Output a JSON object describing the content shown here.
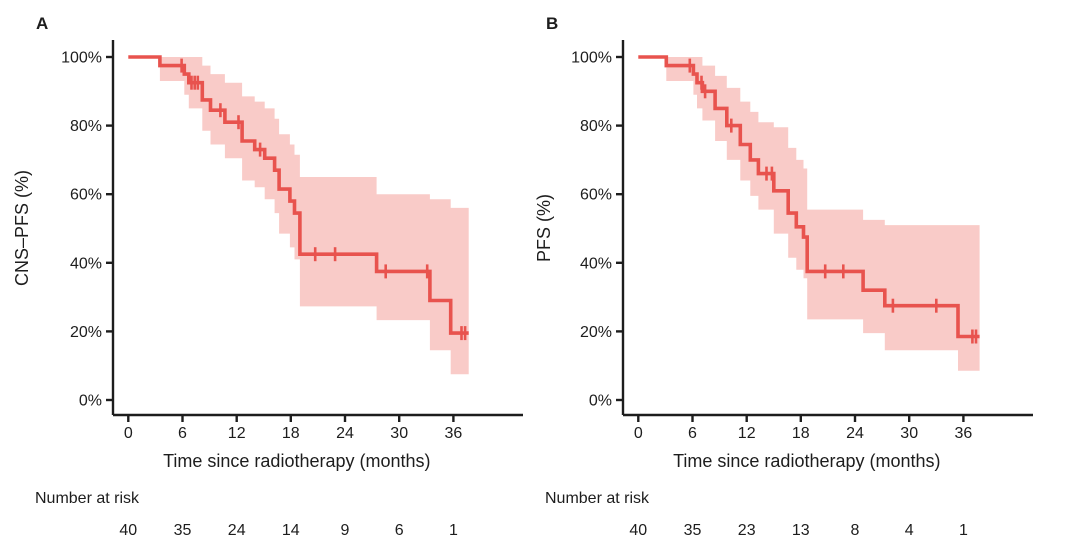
{
  "figure": {
    "background": "#ffffff",
    "colors": {
      "line": "#e8534e",
      "band": "#f9cbc8",
      "text": "#1d1d1d",
      "axis": "#1d1d1d"
    },
    "risk_header": "Number at risk"
  },
  "chart_data": [
    {
      "type": "line",
      "panel_label": "A",
      "ylabel": "CNS–PFS (%)",
      "xlabel": "Time since radiotherapy (months)",
      "x_ticks": [
        0,
        6,
        12,
        18,
        24,
        30,
        36
      ],
      "y_tick_labels": [
        "0%",
        "20%",
        "40%",
        "60%",
        "80%",
        "100%"
      ],
      "y_tick_values": [
        0,
        20,
        40,
        60,
        80,
        100
      ],
      "ylim": [
        0,
        100
      ],
      "xlim": [
        0,
        38
      ],
      "grid": false,
      "legend": "none",
      "number_at_risk": [
        40,
        35,
        24,
        14,
        9,
        6,
        1
      ],
      "risk_header": "Number at risk",
      "end_month": 37.7,
      "steps": [
        [
          0,
          100
        ],
        [
          3.5,
          97.5
        ],
        [
          6.2,
          95
        ],
        [
          6.7,
          92.5
        ],
        [
          8.2,
          87.5
        ],
        [
          9.1,
          84.5
        ],
        [
          10.7,
          81
        ],
        [
          12.6,
          75.5
        ],
        [
          14.0,
          73
        ],
        [
          15.1,
          70.5
        ],
        [
          16.2,
          67
        ],
        [
          16.7,
          61.5
        ],
        [
          17.9,
          58
        ],
        [
          18.4,
          54.5
        ],
        [
          19.0,
          42.5
        ],
        [
          27.5,
          37.5
        ],
        [
          33.4,
          29
        ],
        [
          35.7,
          19.5
        ]
      ],
      "censors": [
        [
          5.9,
          97.5
        ],
        [
          7.0,
          92.5
        ],
        [
          7.35,
          92.5
        ],
        [
          7.7,
          92.5
        ],
        [
          10.2,
          84.5
        ],
        [
          12.2,
          81
        ],
        [
          14.6,
          73
        ],
        [
          20.7,
          42.5
        ],
        [
          22.9,
          42.5
        ],
        [
          28.5,
          37.5
        ],
        [
          33.1,
          37.5
        ],
        [
          36.9,
          19.5
        ],
        [
          37.3,
          19.5
        ]
      ],
      "band": [
        {
          "m0": 3.5,
          "m1": 6.2,
          "hi": 100,
          "lo": 93
        },
        {
          "m0": 6.2,
          "m1": 6.7,
          "hi": 100,
          "lo": 89
        },
        {
          "m0": 6.7,
          "m1": 8.2,
          "hi": 100,
          "lo": 85
        },
        {
          "m0": 8.2,
          "m1": 9.1,
          "hi": 97.5,
          "lo": 78.5
        },
        {
          "m0": 9.1,
          "m1": 10.7,
          "hi": 95,
          "lo": 74.5
        },
        {
          "m0": 10.7,
          "m1": 12.6,
          "hi": 92.5,
          "lo": 70.5
        },
        {
          "m0": 12.6,
          "m1": 14.0,
          "hi": 88.5,
          "lo": 64
        },
        {
          "m0": 14.0,
          "m1": 15.1,
          "hi": 87,
          "lo": 62
        },
        {
          "m0": 15.1,
          "m1": 16.2,
          "hi": 85,
          "lo": 58.5
        },
        {
          "m0": 16.2,
          "m1": 16.7,
          "hi": 82,
          "lo": 54.5
        },
        {
          "m0": 16.7,
          "m1": 17.9,
          "hi": 77.5,
          "lo": 48.5
        },
        {
          "m0": 17.9,
          "m1": 18.4,
          "hi": 74.5,
          "lo": 44.5
        },
        {
          "m0": 18.4,
          "m1": 19.0,
          "hi": 71.5,
          "lo": 41
        },
        {
          "m0": 19.0,
          "m1": 27.5,
          "hi": 65,
          "lo": 27.3
        },
        {
          "m0": 27.5,
          "m1": 33.4,
          "hi": 60,
          "lo": 23.3
        },
        {
          "m0": 33.4,
          "m1": 35.7,
          "hi": 58.5,
          "lo": 14.5
        },
        {
          "m0": 35.7,
          "m1": 37.7,
          "hi": 56,
          "lo": 7.5
        }
      ]
    },
    {
      "type": "line",
      "panel_label": "B",
      "ylabel": "PFS (%)",
      "xlabel": "Time since radiotherapy (months)",
      "x_ticks": [
        0,
        6,
        12,
        18,
        24,
        30,
        36
      ],
      "y_tick_labels": [
        "0%",
        "20%",
        "40%",
        "60%",
        "80%",
        "100%"
      ],
      "y_tick_values": [
        0,
        20,
        40,
        60,
        80,
        100
      ],
      "ylim": [
        0,
        100
      ],
      "xlim": [
        0,
        38
      ],
      "grid": false,
      "legend": "none",
      "number_at_risk": [
        40,
        35,
        23,
        13,
        8,
        4,
        1
      ],
      "risk_header": "Number at risk",
      "end_month": 37.8,
      "steps": [
        [
          0,
          100
        ],
        [
          3.1,
          97.5
        ],
        [
          6.1,
          95
        ],
        [
          6.5,
          92.5
        ],
        [
          7.1,
          90
        ],
        [
          8.5,
          85
        ],
        [
          9.8,
          80
        ],
        [
          11.3,
          74.5
        ],
        [
          12.4,
          70
        ],
        [
          13.3,
          66
        ],
        [
          15.0,
          61
        ],
        [
          16.6,
          54.5
        ],
        [
          17.5,
          50.5
        ],
        [
          18.3,
          47.5
        ],
        [
          18.7,
          37.5
        ],
        [
          24.9,
          32
        ],
        [
          27.3,
          27.5
        ],
        [
          35.4,
          18.5
        ]
      ],
      "censors": [
        [
          5.7,
          97.5
        ],
        [
          7.0,
          92.5
        ],
        [
          7.4,
          90
        ],
        [
          10.3,
          80
        ],
        [
          14.2,
          66
        ],
        [
          14.8,
          66
        ],
        [
          20.7,
          37.5
        ],
        [
          22.7,
          37.5
        ],
        [
          28.2,
          27.5
        ],
        [
          33.0,
          27.5
        ],
        [
          37.0,
          18.5
        ],
        [
          37.4,
          18.5
        ]
      ],
      "band": [
        {
          "m0": 3.1,
          "m1": 6.1,
          "hi": 100,
          "lo": 93
        },
        {
          "m0": 6.1,
          "m1": 6.5,
          "hi": 100,
          "lo": 89
        },
        {
          "m0": 6.5,
          "m1": 7.1,
          "hi": 100,
          "lo": 85
        },
        {
          "m0": 7.1,
          "m1": 8.5,
          "hi": 97.5,
          "lo": 81.5
        },
        {
          "m0": 8.5,
          "m1": 9.8,
          "hi": 94.5,
          "lo": 75.5
        },
        {
          "m0": 9.8,
          "m1": 11.3,
          "hi": 91,
          "lo": 70
        },
        {
          "m0": 11.3,
          "m1": 12.4,
          "hi": 87,
          "lo": 64
        },
        {
          "m0": 12.4,
          "m1": 13.3,
          "hi": 84,
          "lo": 59.5
        },
        {
          "m0": 13.3,
          "m1": 15.0,
          "hi": 81,
          "lo": 55.5
        },
        {
          "m0": 15.0,
          "m1": 16.6,
          "hi": 79.5,
          "lo": 48.5
        },
        {
          "m0": 16.6,
          "m1": 17.5,
          "hi": 73.5,
          "lo": 41.5
        },
        {
          "m0": 17.5,
          "m1": 18.3,
          "hi": 70,
          "lo": 38
        },
        {
          "m0": 18.3,
          "m1": 18.7,
          "hi": 67.5,
          "lo": 35.5
        },
        {
          "m0": 18.7,
          "m1": 24.9,
          "hi": 55.5,
          "lo": 23.5
        },
        {
          "m0": 24.9,
          "m1": 27.3,
          "hi": 52.5,
          "lo": 19.5
        },
        {
          "m0": 27.3,
          "m1": 35.4,
          "hi": 51,
          "lo": 14.5
        },
        {
          "m0": 35.4,
          "m1": 37.8,
          "hi": 51,
          "lo": 8.5
        }
      ]
    }
  ]
}
